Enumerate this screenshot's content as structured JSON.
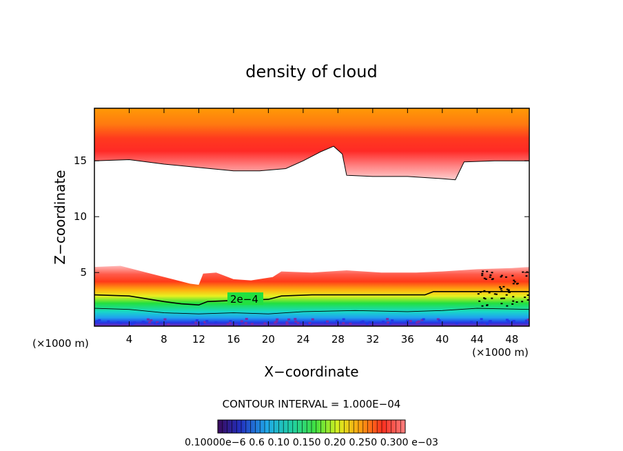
{
  "chart_data": {
    "type": "heatmap",
    "title": "density of cloud",
    "xlabel": "X−coordinate",
    "ylabel": "Z−coordinate",
    "x_unit_left": "(×1000 m)",
    "x_unit_right": "(×1000 m)",
    "xlim": [
      0,
      50
    ],
    "ylim": [
      0.2,
      19.7
    ],
    "x_ticks": [
      4,
      8,
      12,
      16,
      20,
      24,
      28,
      32,
      36,
      40,
      44,
      48
    ],
    "y_ticks": [
      5,
      10,
      15
    ],
    "contour_interval_label": "CONTOUR INTERVAL = 1.000E−04",
    "contour_label": "2e−4",
    "colorbar_labels": "0.10000e−6 0.6 0.10 0.150 0.20 0.250 0.300 e−03",
    "colors": {
      "orange": "#ff9900",
      "red": "#ff2a1a",
      "pink": "#ffb0b0",
      "yellow": "#e8f020",
      "green": "#22e040",
      "cyan": "#18d8d8",
      "blue": "#2238e6",
      "purple": "#7a2aa8"
    },
    "upper_cloud_base_km": [
      [
        0,
        15.0
      ],
      [
        4,
        15.1
      ],
      [
        8,
        14.7
      ],
      [
        12,
        14.4
      ],
      [
        16,
        14.1
      ],
      [
        19,
        14.1
      ],
      [
        22,
        14.3
      ],
      [
        24,
        15.0
      ],
      [
        26,
        15.8
      ],
      [
        27.5,
        16.3
      ],
      [
        28.5,
        15.6
      ],
      [
        29,
        13.7
      ],
      [
        32,
        13.6
      ],
      [
        36,
        13.6
      ],
      [
        40,
        13.4
      ],
      [
        41.5,
        13.3
      ],
      [
        42.5,
        14.9
      ],
      [
        46,
        15.0
      ],
      [
        50,
        15.0
      ]
    ],
    "lower_cloud_top_km": [
      [
        0,
        5.5
      ],
      [
        3,
        5.6
      ],
      [
        6,
        5.0
      ],
      [
        9,
        4.4
      ],
      [
        11,
        4.0
      ],
      [
        12,
        3.9
      ],
      [
        12.5,
        4.9
      ],
      [
        14,
        5.0
      ],
      [
        16,
        4.4
      ],
      [
        18,
        4.3
      ],
      [
        20.5,
        4.6
      ],
      [
        21.5,
        5.1
      ],
      [
        25,
        5.0
      ],
      [
        29,
        5.2
      ],
      [
        33,
        5.0
      ],
      [
        37,
        5.0
      ],
      [
        40,
        5.1
      ],
      [
        44,
        5.3
      ],
      [
        48,
        5.4
      ],
      [
        50,
        5.5
      ]
    ],
    "contour_2e4_km": [
      [
        0,
        3.0
      ],
      [
        4,
        2.9
      ],
      [
        8,
        2.4
      ],
      [
        10,
        2.2
      ],
      [
        12,
        2.1
      ],
      [
        13,
        2.4
      ],
      [
        16,
        2.5
      ],
      [
        20,
        2.6
      ],
      [
        21.5,
        2.9
      ],
      [
        25,
        3.0
      ],
      [
        30,
        3.0
      ],
      [
        35,
        3.0
      ],
      [
        38,
        3.0
      ],
      [
        39,
        3.3
      ],
      [
        44,
        3.3
      ],
      [
        50,
        3.3
      ]
    ],
    "contour_low_km": [
      [
        0,
        1.8
      ],
      [
        4,
        1.7
      ],
      [
        8,
        1.4
      ],
      [
        12,
        1.3
      ],
      [
        16,
        1.4
      ],
      [
        20,
        1.3
      ],
      [
        24,
        1.5
      ],
      [
        30,
        1.6
      ],
      [
        36,
        1.5
      ],
      [
        40,
        1.6
      ],
      [
        44,
        1.8
      ],
      [
        50,
        1.7
      ]
    ]
  }
}
